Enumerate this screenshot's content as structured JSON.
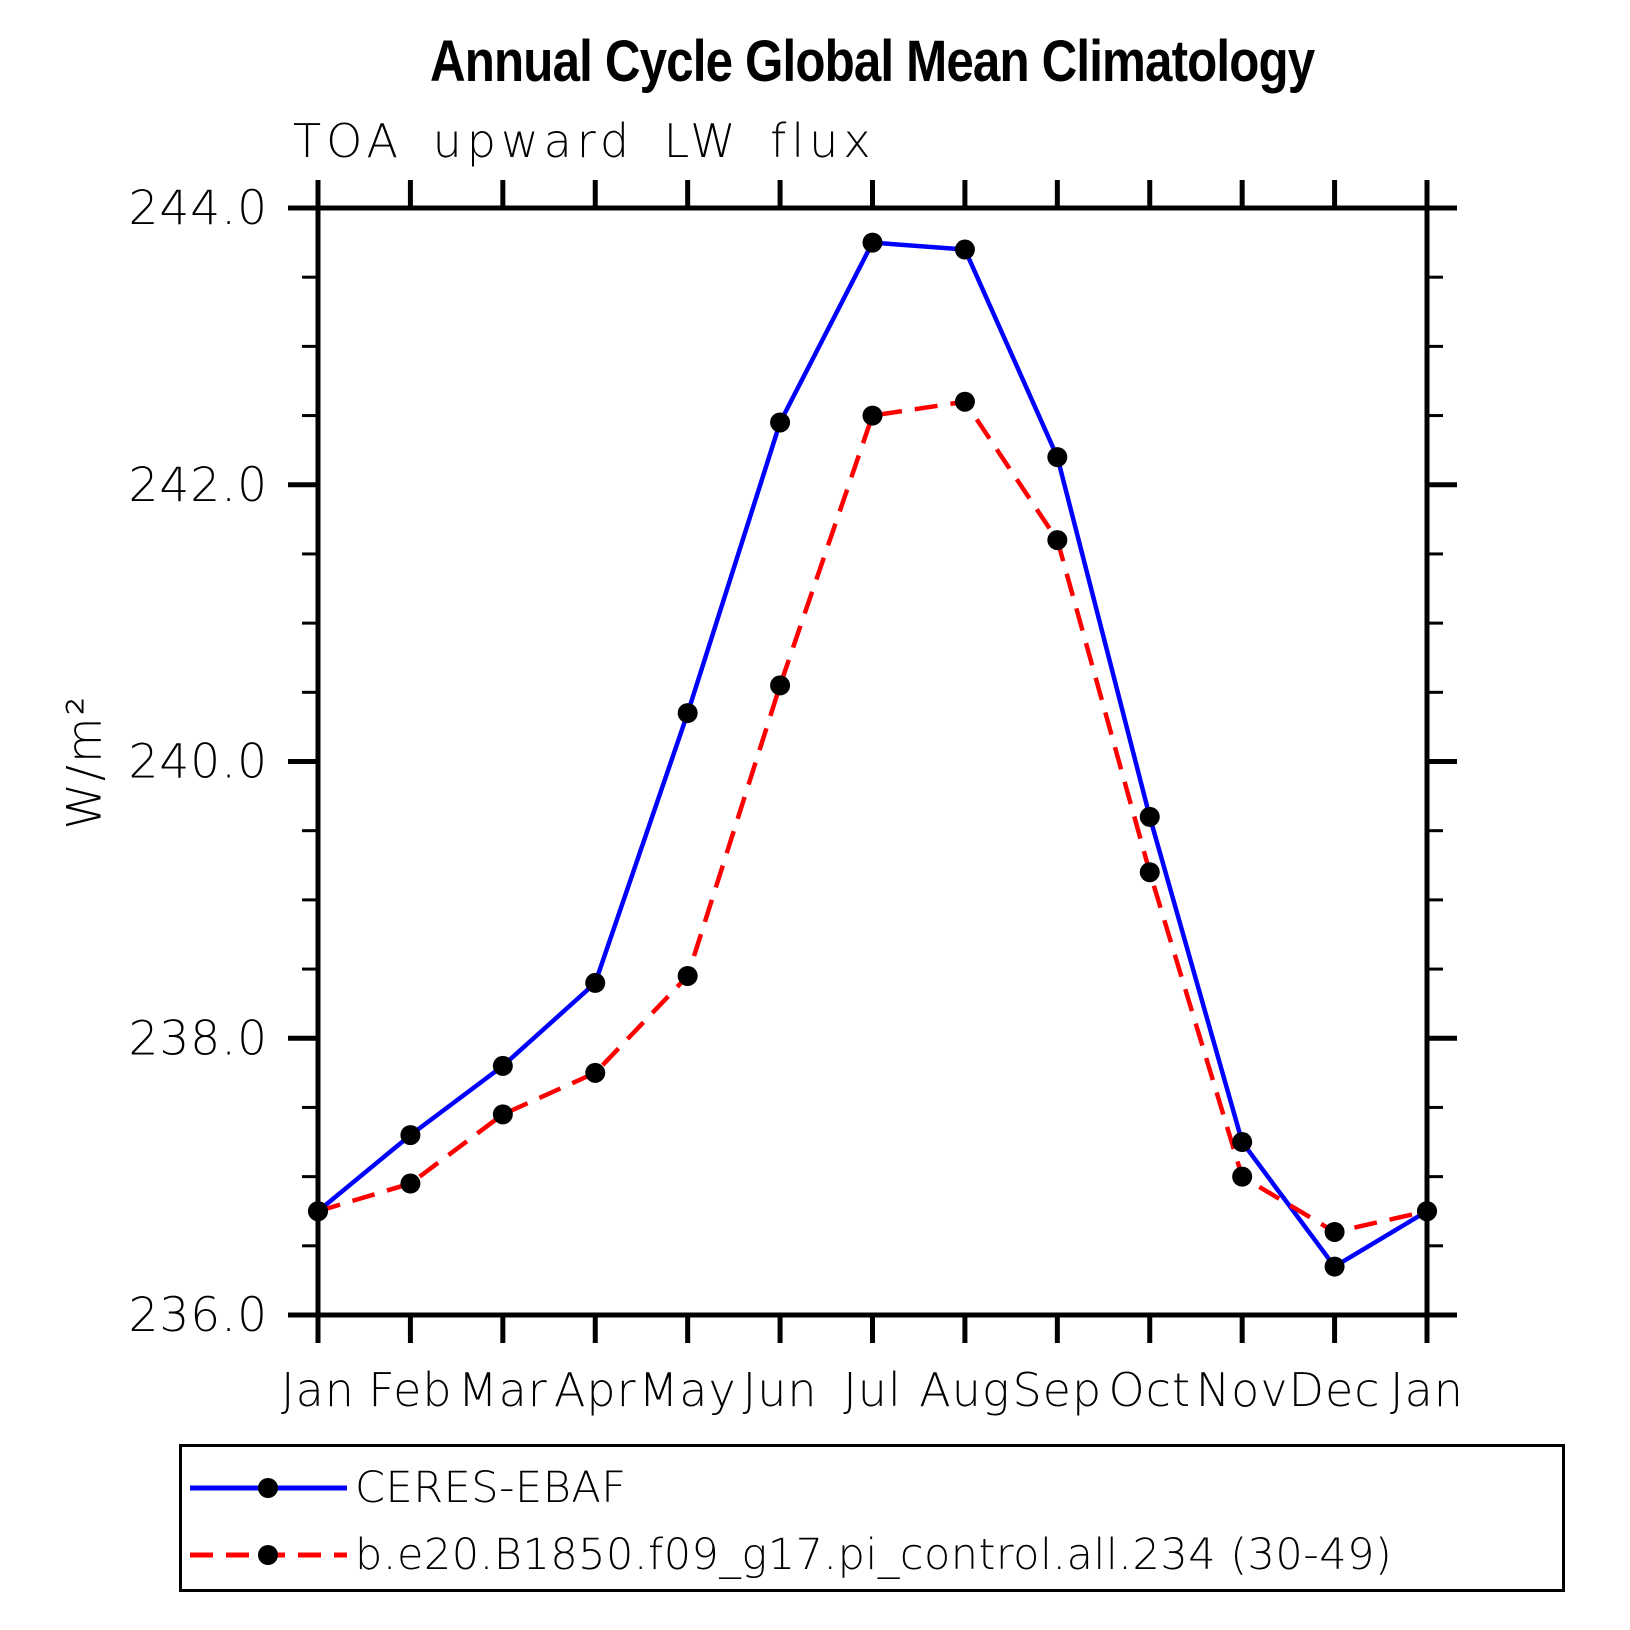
{
  "chart_data": {
    "type": "line",
    "title": "Annual Cycle Global Mean Climatology",
    "subtitle": "TOA upward LW flux",
    "ylabel": "W/m²",
    "categories": [
      "Jan",
      "Feb",
      "Mar",
      "Apr",
      "May",
      "Jun",
      "Jul",
      "Aug",
      "Sep",
      "Oct",
      "Nov",
      "Dec",
      "Jan"
    ],
    "ylim": [
      236.0,
      244.0
    ],
    "ytick_major_interval": 2.0,
    "ytick_minor_interval": 0.5,
    "ytick_labels": [
      "236.0",
      "238.0",
      "240.0",
      "242.0",
      "244.0"
    ],
    "grid": false,
    "legend_position": "bottom",
    "marker": {
      "shape": "circle",
      "color": "#000000",
      "radius": 10
    },
    "series": [
      {
        "name": "CERES-EBAF",
        "color": "#0000ff",
        "style": "solid",
        "values": [
          236.75,
          237.3,
          237.8,
          238.4,
          240.35,
          242.45,
          243.75,
          243.7,
          242.2,
          239.6,
          237.25,
          236.35,
          236.75
        ]
      },
      {
        "name": "b.e20.B1850.f09_g17.pi_control.all.234 (30-49)",
        "color": "#ff0000",
        "style": "dashed",
        "values": [
          236.75,
          236.95,
          237.45,
          237.75,
          238.45,
          240.55,
          242.5,
          242.6,
          241.6,
          239.2,
          237.0,
          236.6,
          236.75
        ]
      }
    ]
  }
}
